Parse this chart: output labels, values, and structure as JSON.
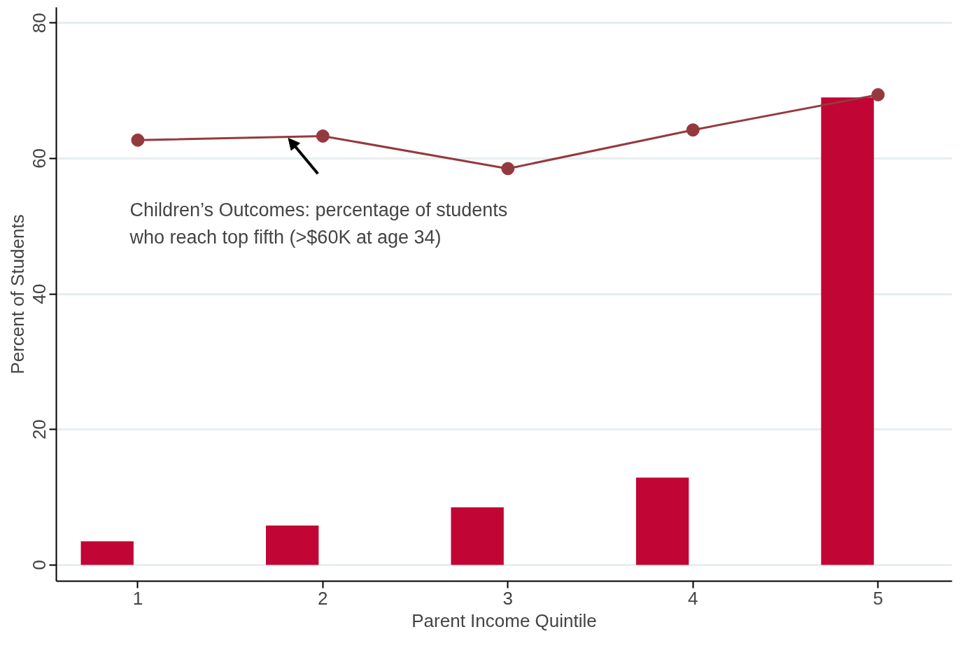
{
  "chart_data": {
    "type": "bar",
    "xlabel": "Parent Income Quintile",
    "ylabel": "Percent of Students",
    "xlim": [
      0.56,
      5.4
    ],
    "ylim": [
      -2.4,
      82.3
    ],
    "xticks": [
      1,
      2,
      3,
      4,
      5
    ],
    "yticks": [
      0,
      20,
      40,
      60,
      80
    ],
    "grid": "y",
    "marker": "circle",
    "series": [
      {
        "color": "#c10534",
        "x": [
          0.835,
          1.835,
          2.835,
          3.835,
          4.835
        ],
        "values": [
          3.5,
          5.8,
          8.5,
          12.9,
          69.0
        ]
      },
      {
        "type": "line",
        "color": "#943a3f",
        "x": [
          1,
          2,
          3,
          4,
          5
        ],
        "values": [
          62.7,
          63.3,
          58.5,
          64.2,
          69.4
        ]
      }
    ],
    "annotations": [
      "Children’s Outcomes: percentage of students\nwho reach top fifth (>$60K at age 34)"
    ]
  }
}
